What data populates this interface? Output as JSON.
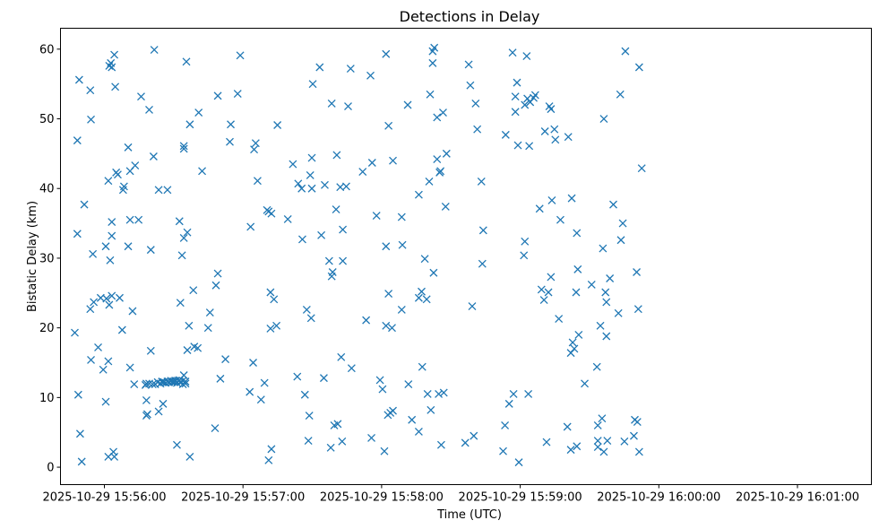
{
  "chart_data": {
    "type": "scatter",
    "title": "Detections in Delay",
    "xlabel": "Time (UTC)",
    "ylabel": "Bistatic Delay (km)",
    "xlim": [
      -19,
      332
    ],
    "ylim": [
      -2.5,
      63
    ],
    "x_units": "seconds after 2025-10-29 15:56:00",
    "xticks": [
      {
        "value": 0,
        "label": "2025-10-29 15:56:00"
      },
      {
        "value": 60,
        "label": "2025-10-29 15:57:00"
      },
      {
        "value": 120,
        "label": "2025-10-29 15:58:00"
      },
      {
        "value": 180,
        "label": "2025-10-29 15:59:00"
      },
      {
        "value": 240,
        "label": "2025-10-29 16:00:00"
      },
      {
        "value": 300,
        "label": "2025-10-29 16:01:00"
      }
    ],
    "yticks": [
      {
        "value": 0,
        "label": "0"
      },
      {
        "value": 10,
        "label": "10"
      },
      {
        "value": 20,
        "label": "20"
      },
      {
        "value": 30,
        "label": "30"
      },
      {
        "value": 40,
        "label": "40"
      },
      {
        "value": 50,
        "label": "50"
      },
      {
        "value": 60,
        "label": "60"
      }
    ],
    "marker": "x",
    "color": "#1f77b4",
    "grid": false,
    "legend": "none",
    "points": [
      [
        -12.8,
        19.3
      ],
      [
        -11.7,
        46.9
      ],
      [
        -11.7,
        33.5
      ],
      [
        -11.3,
        10.4
      ],
      [
        -10.9,
        55.6
      ],
      [
        -10.5,
        4.8
      ],
      [
        -9.8,
        0.8
      ],
      [
        -8.7,
        37.7
      ],
      [
        -6.1,
        22.7
      ],
      [
        -6.1,
        54.1
      ],
      [
        -5.8,
        15.4
      ],
      [
        -5.8,
        49.9
      ],
      [
        -5.0,
        30.6
      ],
      [
        -4.6,
        23.7
      ],
      [
        -2.7,
        17.2
      ],
      [
        -1.6,
        24.3
      ],
      [
        -0.5,
        14.0
      ],
      [
        0.6,
        31.7
      ],
      [
        0.6,
        9.4
      ],
      [
        0.9,
        24.2
      ],
      [
        1.7,
        15.2
      ],
      [
        1.7,
        41.1
      ],
      [
        1.7,
        1.5
      ],
      [
        2.1,
        57.6
      ],
      [
        2.1,
        23.3
      ],
      [
        2.5,
        29.7
      ],
      [
        2.8,
        58.0
      ],
      [
        3.2,
        57.4
      ],
      [
        3.2,
        33.2
      ],
      [
        3.2,
        24.6
      ],
      [
        3.2,
        35.2
      ],
      [
        3.9,
        2.2
      ],
      [
        4.3,
        59.2
      ],
      [
        4.3,
        1.5
      ],
      [
        4.7,
        54.6
      ],
      [
        5.1,
        42.3
      ],
      [
        5.8,
        42.0
      ],
      [
        6.6,
        24.3
      ],
      [
        7.7,
        19.7
      ],
      [
        8.1,
        39.8
      ],
      [
        8.5,
        40.3
      ],
      [
        10.3,
        31.7
      ],
      [
        10.3,
        45.9
      ],
      [
        11.1,
        42.5
      ],
      [
        11.1,
        14.3
      ],
      [
        11.1,
        35.5
      ],
      [
        12.2,
        22.4
      ],
      [
        12.9,
        11.9
      ],
      [
        13.3,
        43.3
      ],
      [
        14.8,
        35.5
      ],
      [
        15.9,
        53.2
      ],
      [
        17.8,
        11.8
      ],
      [
        18.2,
        12.0
      ],
      [
        18.2,
        9.6
      ],
      [
        18.2,
        7.4
      ],
      [
        18.6,
        7.6
      ],
      [
        19.4,
        51.3
      ],
      [
        19.4,
        12.0
      ],
      [
        20.1,
        16.7
      ],
      [
        20.1,
        31.2
      ],
      [
        20.9,
        11.9
      ],
      [
        21.3,
        44.6
      ],
      [
        21.6,
        59.9
      ],
      [
        22.0,
        11.9
      ],
      [
        23.1,
        12.2
      ],
      [
        23.5,
        39.8
      ],
      [
        23.5,
        8.0
      ],
      [
        24.3,
        12.0
      ],
      [
        25.0,
        12.2
      ],
      [
        25.0,
        12.3
      ],
      [
        25.4,
        9.1
      ],
      [
        25.8,
        12.2
      ],
      [
        26.5,
        12.1
      ],
      [
        27.3,
        12.3
      ],
      [
        27.3,
        39.8
      ],
      [
        28.0,
        12.2
      ],
      [
        28.8,
        12.4
      ],
      [
        29.2,
        12.2
      ],
      [
        29.5,
        12.3
      ],
      [
        30.3,
        12.2
      ],
      [
        30.6,
        12.4
      ],
      [
        31.0,
        12.4
      ],
      [
        31.4,
        3.2
      ],
      [
        31.4,
        12.1
      ],
      [
        32.1,
        12.4
      ],
      [
        32.5,
        35.3
      ],
      [
        32.5,
        12.5
      ],
      [
        32.9,
        12.2
      ],
      [
        32.9,
        23.6
      ],
      [
        33.6,
        30.4
      ],
      [
        34.0,
        12.4
      ],
      [
        34.0,
        11.9
      ],
      [
        34.4,
        46.1
      ],
      [
        34.4,
        45.7
      ],
      [
        34.4,
        13.2
      ],
      [
        34.4,
        32.9
      ],
      [
        35.1,
        12.3
      ],
      [
        35.1,
        12.0
      ],
      [
        35.5,
        58.2
      ],
      [
        35.9,
        33.7
      ],
      [
        35.9,
        16.8
      ],
      [
        36.6,
        20.3
      ],
      [
        37.0,
        49.2
      ],
      [
        37.0,
        1.5
      ],
      [
        38.5,
        25.4
      ],
      [
        38.9,
        17.3
      ],
      [
        40.4,
        17.1
      ],
      [
        40.8,
        50.9
      ],
      [
        42.3,
        42.5
      ],
      [
        44.9,
        20.0
      ],
      [
        45.7,
        22.2
      ],
      [
        47.9,
        5.6
      ],
      [
        48.3,
        26.1
      ],
      [
        49.1,
        53.3
      ],
      [
        49.1,
        27.8
      ],
      [
        50.2,
        12.7
      ],
      [
        52.4,
        15.5
      ],
      [
        54.3,
        46.7
      ],
      [
        54.7,
        49.2
      ],
      [
        57.7,
        53.6
      ],
      [
        58.8,
        59.1
      ],
      [
        62.9,
        10.8
      ],
      [
        63.3,
        34.5
      ],
      [
        64.4,
        15.0
      ],
      [
        64.8,
        45.6
      ],
      [
        65.5,
        46.5
      ],
      [
        66.3,
        41.1
      ],
      [
        67.8,
        9.7
      ],
      [
        69.3,
        12.1
      ],
      [
        70.4,
        36.9
      ],
      [
        71.1,
        1.0
      ],
      [
        71.1,
        36.7
      ],
      [
        71.9,
        19.9
      ],
      [
        71.9,
        25.1
      ],
      [
        72.3,
        36.4
      ],
      [
        72.3,
        2.6
      ],
      [
        73.4,
        24.1
      ],
      [
        74.5,
        20.3
      ],
      [
        74.9,
        49.1
      ],
      [
        79.4,
        35.6
      ],
      [
        81.6,
        43.5
      ],
      [
        83.5,
        13.0
      ],
      [
        83.9,
        40.7
      ],
      [
        85.4,
        40.0
      ],
      [
        85.7,
        32.7
      ],
      [
        86.8,
        10.4
      ],
      [
        87.6,
        22.6
      ],
      [
        88.3,
        3.8
      ],
      [
        88.7,
        7.4
      ],
      [
        89.1,
        41.9
      ],
      [
        89.5,
        21.4
      ],
      [
        89.8,
        40.0
      ],
      [
        89.8,
        44.4
      ],
      [
        90.2,
        55.0
      ],
      [
        93.2,
        57.4
      ],
      [
        93.9,
        33.3
      ],
      [
        95.0,
        12.8
      ],
      [
        95.4,
        40.5
      ],
      [
        97.3,
        29.6
      ],
      [
        98.0,
        2.8
      ],
      [
        98.4,
        27.4
      ],
      [
        98.4,
        52.2
      ],
      [
        98.8,
        28.0
      ],
      [
        99.5,
        6.0
      ],
      [
        100.3,
        37.0
      ],
      [
        100.6,
        44.8
      ],
      [
        101.0,
        6.2
      ],
      [
        102.1,
        40.2
      ],
      [
        102.5,
        15.8
      ],
      [
        102.9,
        3.7
      ],
      [
        103.2,
        29.6
      ],
      [
        103.2,
        34.1
      ],
      [
        104.7,
        40.3
      ],
      [
        105.5,
        51.8
      ],
      [
        106.6,
        57.2
      ],
      [
        107.0,
        14.2
      ],
      [
        111.8,
        42.4
      ],
      [
        113.3,
        21.1
      ],
      [
        115.2,
        56.2
      ],
      [
        115.6,
        4.2
      ],
      [
        115.9,
        43.7
      ],
      [
        117.8,
        36.1
      ],
      [
        119.3,
        12.5
      ],
      [
        120.4,
        11.2
      ],
      [
        121.2,
        2.3
      ],
      [
        121.9,
        59.3
      ],
      [
        121.9,
        31.7
      ],
      [
        121.9,
        20.3
      ],
      [
        122.7,
        7.5
      ],
      [
        123.0,
        49.0
      ],
      [
        123.0,
        24.9
      ],
      [
        123.8,
        7.8
      ],
      [
        124.5,
        20.0
      ],
      [
        124.9,
        44.0
      ],
      [
        124.9,
        8.1
      ],
      [
        128.7,
        35.9
      ],
      [
        128.7,
        22.6
      ],
      [
        129.0,
        31.9
      ],
      [
        131.3,
        52.0
      ],
      [
        131.6,
        11.9
      ],
      [
        133.1,
        6.8
      ],
      [
        136.1,
        24.3
      ],
      [
        136.1,
        39.1
      ],
      [
        136.1,
        5.1
      ],
      [
        137.3,
        25.2
      ],
      [
        137.6,
        14.4
      ],
      [
        138.7,
        29.9
      ],
      [
        139.5,
        24.1
      ],
      [
        139.9,
        10.5
      ],
      [
        140.6,
        41.0
      ],
      [
        141.0,
        53.5
      ],
      [
        141.3,
        8.2
      ],
      [
        142.1,
        58.0
      ],
      [
        142.1,
        59.7
      ],
      [
        142.5,
        27.9
      ],
      [
        142.8,
        60.2
      ],
      [
        144.0,
        44.2
      ],
      [
        144.0,
        50.2
      ],
      [
        144.7,
        10.5
      ],
      [
        145.1,
        42.3
      ],
      [
        145.5,
        42.5
      ],
      [
        145.8,
        3.2
      ],
      [
        146.6,
        50.9
      ],
      [
        146.9,
        10.7
      ],
      [
        147.7,
        37.4
      ],
      [
        148.1,
        45.0
      ],
      [
        156.2,
        3.5
      ],
      [
        157.7,
        57.8
      ],
      [
        158.4,
        54.8
      ],
      [
        159.2,
        23.1
      ],
      [
        159.9,
        4.5
      ],
      [
        160.7,
        52.2
      ],
      [
        161.4,
        48.5
      ],
      [
        163.2,
        41.0
      ],
      [
        163.6,
        29.2
      ],
      [
        164.0,
        34.0
      ],
      [
        172.6,
        2.3
      ],
      [
        173.4,
        6.0
      ],
      [
        173.7,
        47.7
      ],
      [
        175.2,
        9.1
      ],
      [
        176.7,
        59.5
      ],
      [
        177.1,
        10.5
      ],
      [
        177.9,
        51.0
      ],
      [
        177.9,
        53.2
      ],
      [
        178.6,
        55.2
      ],
      [
        179.0,
        46.2
      ],
      [
        179.4,
        0.7
      ],
      [
        181.6,
        30.4
      ],
      [
        182.0,
        32.4
      ],
      [
        182.0,
        52.0
      ],
      [
        182.8,
        59.0
      ],
      [
        183.1,
        52.9
      ],
      [
        183.5,
        10.5
      ],
      [
        183.9,
        46.1
      ],
      [
        184.3,
        52.4
      ],
      [
        185.8,
        53.0
      ],
      [
        186.5,
        53.4
      ],
      [
        188.4,
        37.1
      ],
      [
        189.2,
        25.5
      ],
      [
        190.3,
        24.0
      ],
      [
        190.7,
        48.2
      ],
      [
        191.4,
        3.6
      ],
      [
        192.2,
        25.1
      ],
      [
        192.6,
        51.8
      ],
      [
        193.3,
        27.3
      ],
      [
        193.3,
        51.4
      ],
      [
        193.7,
        38.3
      ],
      [
        194.8,
        48.5
      ],
      [
        195.2,
        47.0
      ],
      [
        196.7,
        21.3
      ],
      [
        197.4,
        35.5
      ],
      [
        200.4,
        5.8
      ],
      [
        200.8,
        47.4
      ],
      [
        201.9,
        2.5
      ],
      [
        201.9,
        16.4
      ],
      [
        202.3,
        38.6
      ],
      [
        202.7,
        17.9
      ],
      [
        203.4,
        17.0
      ],
      [
        204.2,
        25.1
      ],
      [
        204.5,
        33.6
      ],
      [
        204.5,
        3.0
      ],
      [
        204.9,
        28.4
      ],
      [
        205.3,
        19.0
      ],
      [
        207.9,
        12.0
      ],
      [
        210.9,
        26.2
      ],
      [
        213.2,
        14.4
      ],
      [
        213.6,
        3.8
      ],
      [
        213.6,
        6.0
      ],
      [
        213.6,
        2.9
      ],
      [
        214.7,
        20.3
      ],
      [
        215.4,
        7.0
      ],
      [
        215.8,
        31.4
      ],
      [
        216.2,
        2.2
      ],
      [
        216.2,
        50.0
      ],
      [
        216.9,
        25.1
      ],
      [
        217.3,
        23.7
      ],
      [
        217.3,
        18.8
      ],
      [
        217.7,
        3.8
      ],
      [
        218.8,
        27.1
      ],
      [
        220.3,
        37.7
      ],
      [
        222.5,
        22.1
      ],
      [
        223.3,
        53.5
      ],
      [
        223.6,
        32.6
      ],
      [
        224.4,
        35.0
      ],
      [
        225.1,
        3.7
      ],
      [
        225.5,
        59.7
      ],
      [
        229.2,
        4.5
      ],
      [
        229.6,
        6.8
      ],
      [
        230.4,
        28.0
      ],
      [
        230.7,
        6.5
      ],
      [
        231.1,
        22.7
      ],
      [
        231.5,
        57.4
      ],
      [
        231.5,
        2.2
      ],
      [
        232.6,
        42.9
      ]
    ]
  }
}
